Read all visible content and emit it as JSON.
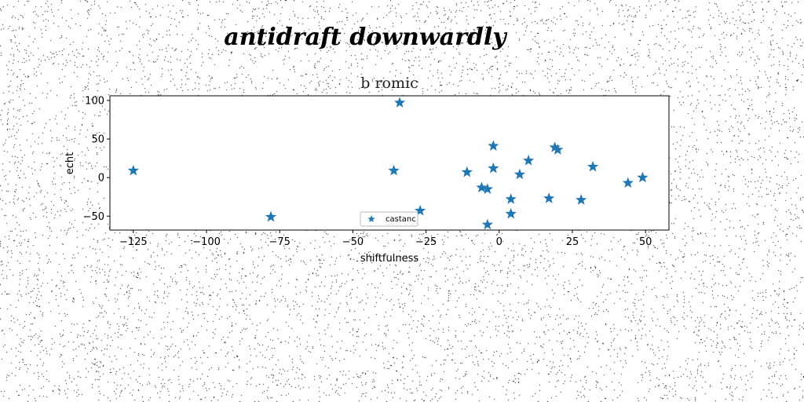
{
  "figure": {
    "supertitle": "antidraft downwardly"
  },
  "chart_data": {
    "type": "scatter",
    "title": "b romic",
    "xlabel": "shiftfulness",
    "ylabel": "echt",
    "xlim": [
      -133,
      58
    ],
    "ylim": [
      -68,
      106
    ],
    "xticks": [
      -125,
      -100,
      -75,
      -50,
      -25,
      0,
      25,
      50
    ],
    "xtick_labels": [
      "−125",
      "−100",
      "−75",
      "−50",
      "−25",
      "0",
      "25",
      "50"
    ],
    "yticks": [
      -50,
      0,
      50,
      100
    ],
    "ytick_labels": [
      "−50",
      "0",
      "50",
      "100"
    ],
    "grid": false,
    "legend_position": "bottom-center",
    "series": [
      {
        "name": "castanc",
        "marker": "star",
        "color": "#1f77b4",
        "x": [
          -125,
          -78,
          -34,
          -36,
          -27,
          -11,
          -6,
          -4,
          -4,
          -2,
          -2,
          4,
          4,
          7,
          10,
          17,
          19,
          20,
          28,
          32,
          44,
          49
        ],
        "y": [
          9,
          -51,
          97,
          9,
          -43,
          7,
          -13,
          -15,
          -61,
          41,
          12,
          -28,
          -47,
          4,
          22,
          -27,
          39,
          36,
          -29,
          14,
          -7,
          0
        ]
      }
    ]
  }
}
